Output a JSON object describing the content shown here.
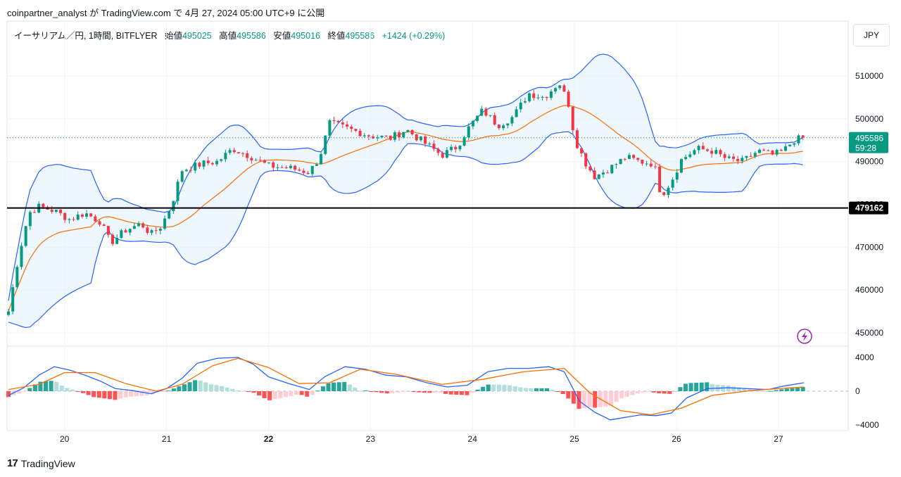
{
  "header": {
    "publish_line": "coinpartner_analyst が TradingView.com で 4月 27, 2024 05:00 UTC+9 に公開"
  },
  "legend": {
    "symbol": "イーサリアム／円, 1時間, BITFLYER",
    "open_label": "始値",
    "open": "495025",
    "high_label": "高値",
    "high": "495586",
    "low_label": "安値",
    "low": "495016",
    "close_label": "終値",
    "close": "495586",
    "change": "+1424 (+0.29%)"
  },
  "currency_button": "JPY",
  "price_tag": {
    "price": "495586",
    "countdown": "59:28"
  },
  "hline_label": "479162",
  "footer": {
    "brand_mark": "17",
    "brand": "TradingView"
  },
  "colors": {
    "up": "#089981",
    "down": "#f23645",
    "band": "#2962ff",
    "basis": "#ff6d00",
    "band_fill": "#e3f2fd",
    "macd": "#2962ff",
    "signal": "#ff6d00",
    "hist_up_strong": "#26a69a",
    "hist_up_weak": "#b2dfdb",
    "hist_down_strong": "#ff5252",
    "hist_down_weak": "#ffcdd2"
  },
  "chart_data": [
    {
      "type": "candlestick",
      "indicator": "Bollinger Bands",
      "x_ticks": [
        "20",
        "21",
        "22",
        "23",
        "24",
        "25",
        "26",
        "27"
      ],
      "y_ticks": [
        "510000",
        "500000",
        "490000",
        "480000",
        "470000",
        "460000",
        "450000"
      ],
      "ylim": [
        448000,
        516000
      ],
      "horizontal_line": 479162,
      "last_price": 495586,
      "close_path": [
        {
          "x": 19.45,
          "y": 455000
        },
        {
          "x": 19.55,
          "y": 468000
        },
        {
          "x": 19.65,
          "y": 478000
        },
        {
          "x": 19.75,
          "y": 479500
        },
        {
          "x": 19.9,
          "y": 478500
        },
        {
          "x": 20.05,
          "y": 476500
        },
        {
          "x": 20.2,
          "y": 478000
        },
        {
          "x": 20.35,
          "y": 476000
        },
        {
          "x": 20.45,
          "y": 471000
        },
        {
          "x": 20.6,
          "y": 474000
        },
        {
          "x": 20.75,
          "y": 475500
        },
        {
          "x": 20.85,
          "y": 473000
        },
        {
          "x": 20.95,
          "y": 475000
        },
        {
          "x": 21.05,
          "y": 480000
        },
        {
          "x": 21.15,
          "y": 488000
        },
        {
          "x": 21.35,
          "y": 489500
        },
        {
          "x": 21.5,
          "y": 490000
        },
        {
          "x": 21.65,
          "y": 493000
        },
        {
          "x": 21.8,
          "y": 491500
        },
        {
          "x": 22.0,
          "y": 489000
        },
        {
          "x": 22.2,
          "y": 488500
        },
        {
          "x": 22.4,
          "y": 487500
        },
        {
          "x": 22.5,
          "y": 491000
        },
        {
          "x": 22.6,
          "y": 499000
        },
        {
          "x": 22.8,
          "y": 497500
        },
        {
          "x": 23.0,
          "y": 496000
        },
        {
          "x": 23.2,
          "y": 495500
        },
        {
          "x": 23.35,
          "y": 497500
        },
        {
          "x": 23.55,
          "y": 494000
        },
        {
          "x": 23.7,
          "y": 491500
        },
        {
          "x": 23.85,
          "y": 493500
        },
        {
          "x": 23.95,
          "y": 497500
        },
        {
          "x": 24.1,
          "y": 502000
        },
        {
          "x": 24.25,
          "y": 498500
        },
        {
          "x": 24.4,
          "y": 500500
        },
        {
          "x": 24.55,
          "y": 506000
        },
        {
          "x": 24.7,
          "y": 505000
        },
        {
          "x": 24.85,
          "y": 508500
        },
        {
          "x": 24.95,
          "y": 503000
        },
        {
          "x": 25.0,
          "y": 495500
        },
        {
          "x": 25.1,
          "y": 490000
        },
        {
          "x": 25.2,
          "y": 486500
        },
        {
          "x": 25.35,
          "y": 488500
        },
        {
          "x": 25.5,
          "y": 491000
        },
        {
          "x": 25.65,
          "y": 490000
        },
        {
          "x": 25.78,
          "y": 489500
        },
        {
          "x": 25.85,
          "y": 482000
        },
        {
          "x": 25.95,
          "y": 485500
        },
        {
          "x": 26.05,
          "y": 490500
        },
        {
          "x": 26.2,
          "y": 493000
        },
        {
          "x": 26.35,
          "y": 492500
        },
        {
          "x": 26.5,
          "y": 490500
        },
        {
          "x": 26.65,
          "y": 490000
        },
        {
          "x": 26.8,
          "y": 492500
        },
        {
          "x": 26.95,
          "y": 491500
        },
        {
          "x": 27.05,
          "y": 492500
        },
        {
          "x": 27.15,
          "y": 495000
        },
        {
          "x": 27.25,
          "y": 495586
        }
      ]
    },
    {
      "type": "macd",
      "y_ticks": [
        "4000",
        "0",
        "−4000"
      ],
      "ylim": [
        -4400,
        4400
      ],
      "macd_line": [
        {
          "x": 19.45,
          "y": -500
        },
        {
          "x": 19.6,
          "y": 400
        },
        {
          "x": 19.75,
          "y": 1900
        },
        {
          "x": 19.9,
          "y": 2900
        },
        {
          "x": 20.05,
          "y": 2500
        },
        {
          "x": 20.2,
          "y": 1900
        },
        {
          "x": 20.35,
          "y": 1200
        },
        {
          "x": 20.5,
          "y": 300
        },
        {
          "x": 20.65,
          "y": 100
        },
        {
          "x": 20.85,
          "y": -300
        },
        {
          "x": 21.0,
          "y": 300
        },
        {
          "x": 21.15,
          "y": 1500
        },
        {
          "x": 21.3,
          "y": 3300
        },
        {
          "x": 21.5,
          "y": 3900
        },
        {
          "x": 21.7,
          "y": 4000
        },
        {
          "x": 21.85,
          "y": 3200
        },
        {
          "x": 22.0,
          "y": 1700
        },
        {
          "x": 22.2,
          "y": 900
        },
        {
          "x": 22.4,
          "y": 200
        },
        {
          "x": 22.55,
          "y": 1700
        },
        {
          "x": 22.75,
          "y": 2900
        },
        {
          "x": 22.95,
          "y": 2600
        },
        {
          "x": 23.15,
          "y": 1900
        },
        {
          "x": 23.35,
          "y": 1700
        },
        {
          "x": 23.55,
          "y": 1000
        },
        {
          "x": 23.75,
          "y": 500
        },
        {
          "x": 23.95,
          "y": 700
        },
        {
          "x": 24.15,
          "y": 2300
        },
        {
          "x": 24.35,
          "y": 2700
        },
        {
          "x": 24.55,
          "y": 2700
        },
        {
          "x": 24.75,
          "y": 2900
        },
        {
          "x": 24.9,
          "y": 2300
        },
        {
          "x": 25.05,
          "y": -1200
        },
        {
          "x": 25.2,
          "y": -2500
        },
        {
          "x": 25.35,
          "y": -3400
        },
        {
          "x": 25.5,
          "y": -3100
        },
        {
          "x": 25.65,
          "y": -2800
        },
        {
          "x": 25.8,
          "y": -2900
        },
        {
          "x": 25.95,
          "y": -2600
        },
        {
          "x": 26.1,
          "y": -800
        },
        {
          "x": 26.3,
          "y": 300
        },
        {
          "x": 26.5,
          "y": 400
        },
        {
          "x": 26.7,
          "y": 300
        },
        {
          "x": 26.9,
          "y": 200
        },
        {
          "x": 27.05,
          "y": 600
        },
        {
          "x": 27.25,
          "y": 1000
        }
      ],
      "signal_line": [
        {
          "x": 19.45,
          "y": 200
        },
        {
          "x": 19.75,
          "y": 800
        },
        {
          "x": 20.0,
          "y": 2200
        },
        {
          "x": 20.3,
          "y": 2200
        },
        {
          "x": 20.6,
          "y": 900
        },
        {
          "x": 20.9,
          "y": 0
        },
        {
          "x": 21.15,
          "y": 800
        },
        {
          "x": 21.45,
          "y": 3000
        },
        {
          "x": 21.7,
          "y": 3900
        },
        {
          "x": 22.0,
          "y": 2800
        },
        {
          "x": 22.3,
          "y": 900
        },
        {
          "x": 22.6,
          "y": 1000
        },
        {
          "x": 22.9,
          "y": 2600
        },
        {
          "x": 23.25,
          "y": 2000
        },
        {
          "x": 23.7,
          "y": 800
        },
        {
          "x": 24.1,
          "y": 1400
        },
        {
          "x": 24.5,
          "y": 2300
        },
        {
          "x": 24.9,
          "y": 2700
        },
        {
          "x": 25.15,
          "y": -200
        },
        {
          "x": 25.45,
          "y": -2300
        },
        {
          "x": 25.75,
          "y": -2800
        },
        {
          "x": 26.05,
          "y": -2000
        },
        {
          "x": 26.35,
          "y": -500
        },
        {
          "x": 26.75,
          "y": 100
        },
        {
          "x": 27.25,
          "y": 500
        }
      ]
    }
  ]
}
